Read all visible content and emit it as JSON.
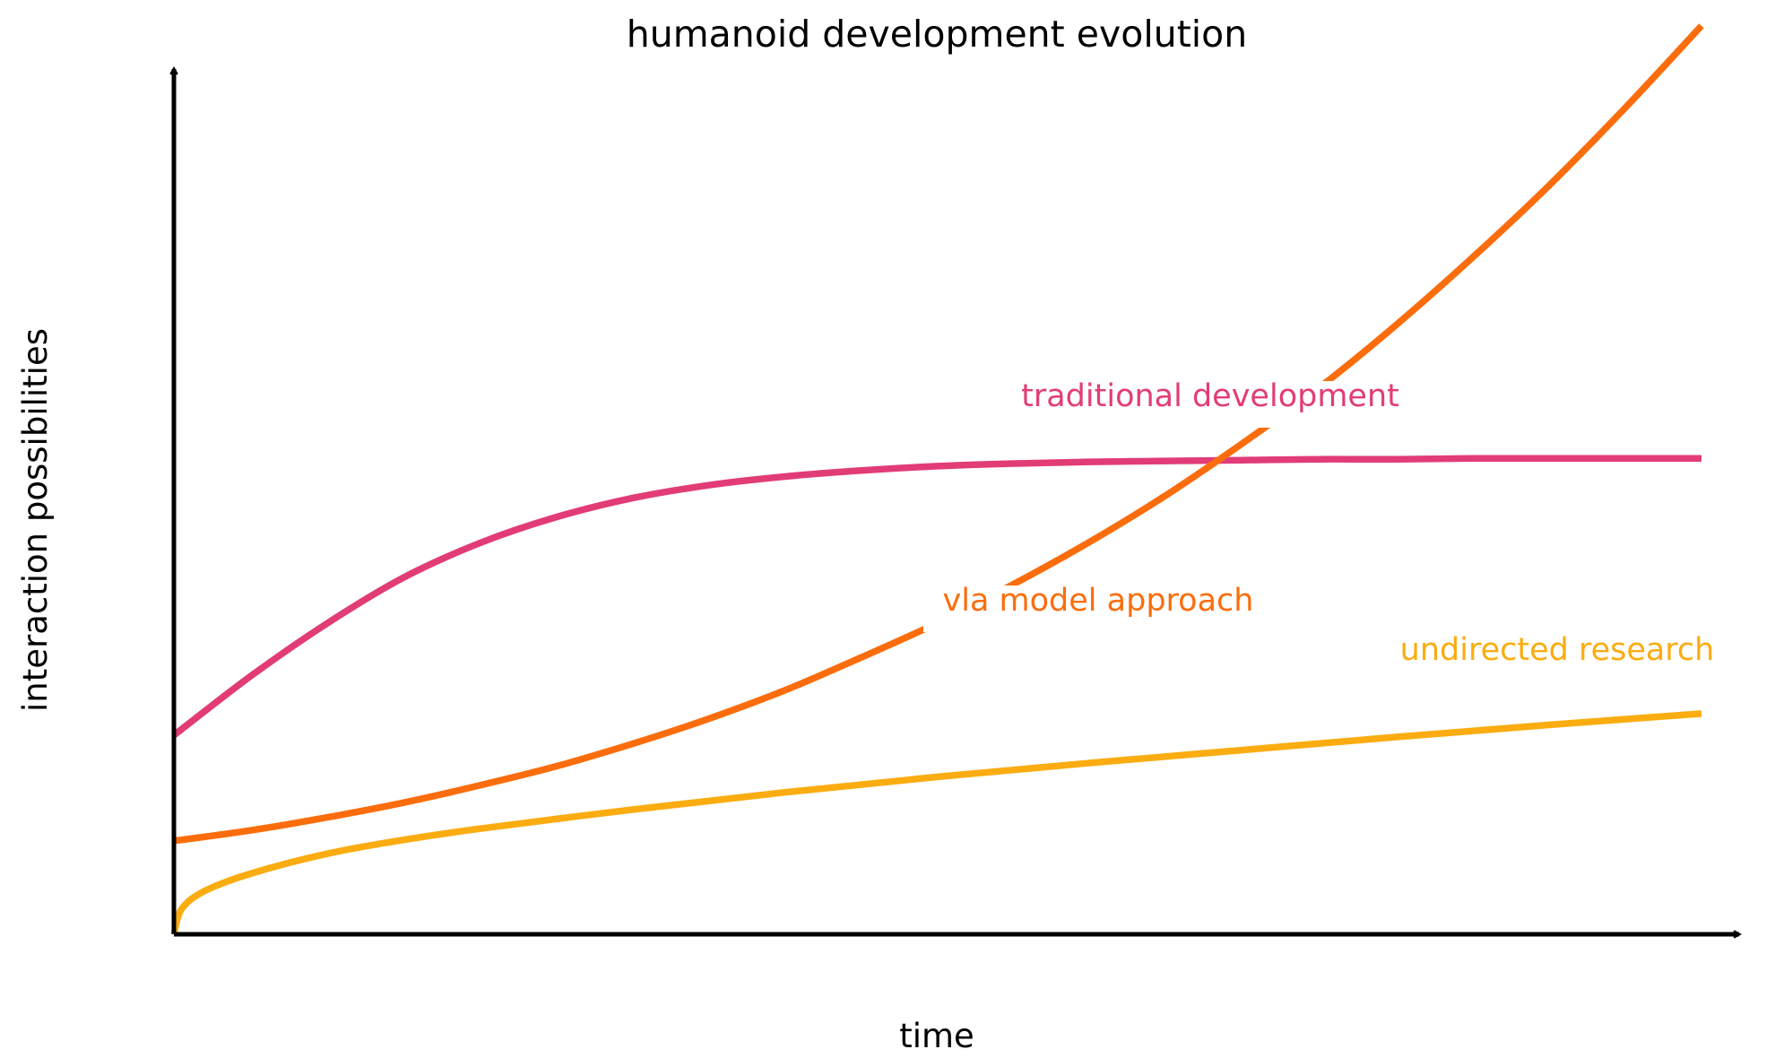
{
  "chart_data": {
    "type": "line",
    "title": "humanoid development evolution",
    "xlabel": "time",
    "ylabel": "interaction possibilities",
    "xlim": [
      0,
      10
    ],
    "ylim": [
      0,
      10
    ],
    "grid": false,
    "legend": "inline labels",
    "ticks": "none",
    "series": [
      {
        "name": "traditional development",
        "color": "#e23c77",
        "x": [
          0,
          0.5,
          1,
          1.5,
          2,
          2.5,
          3,
          3.5,
          4,
          4.5,
          5,
          5.5,
          6,
          6.5,
          7,
          7.5,
          8,
          8.5,
          9,
          9.5,
          10
        ],
        "y": [
          2.3,
          2.98,
          3.59,
          4.12,
          4.52,
          4.82,
          5.04,
          5.19,
          5.29,
          5.36,
          5.41,
          5.44,
          5.46,
          5.47,
          5.48,
          5.49,
          5.49,
          5.5,
          5.5,
          5.5,
          5.5
        ]
      },
      {
        "name": "vla model approach",
        "color": "#fb6d0c",
        "x": [
          0,
          0.5,
          1,
          1.5,
          2,
          2.5,
          3,
          3.5,
          4,
          4.5,
          5,
          5.5,
          6,
          6.5,
          7,
          7.5,
          8,
          8.5,
          9,
          9.5,
          10
        ],
        "y": [
          1.08,
          1.2,
          1.35,
          1.52,
          1.72,
          1.94,
          2.2,
          2.49,
          2.82,
          3.2,
          3.6,
          4.05,
          4.54,
          5.08,
          5.68,
          6.32,
          7.04,
          7.82,
          8.65,
          9.55,
          10.5
        ]
      },
      {
        "name": "undirected research",
        "color": "#fbac10",
        "x": [
          0,
          0.05,
          0.2,
          0.5,
          1,
          1.5,
          2,
          3,
          4,
          5,
          6,
          7,
          8,
          9,
          10
        ],
        "y": [
          0,
          0.29,
          0.5,
          0.7,
          0.93,
          1.09,
          1.22,
          1.44,
          1.64,
          1.82,
          1.98,
          2.13,
          2.28,
          2.42,
          2.55
        ]
      }
    ]
  }
}
